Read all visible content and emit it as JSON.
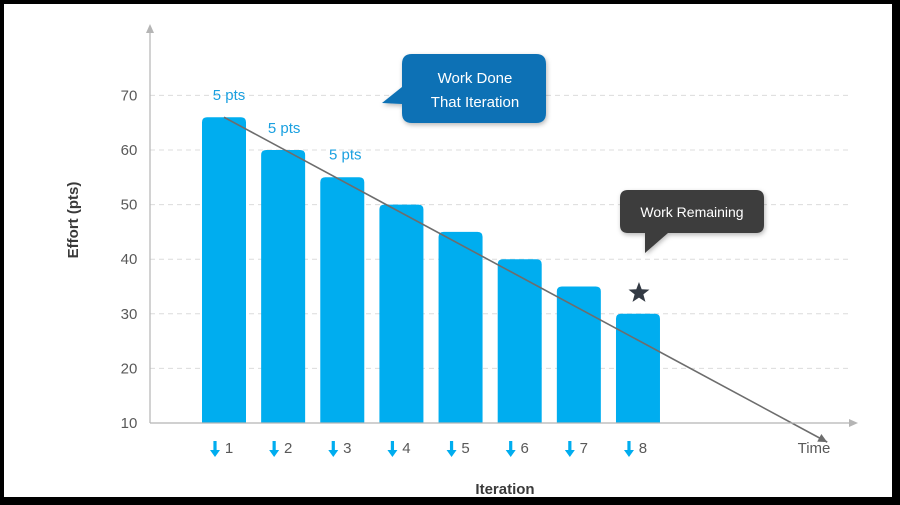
{
  "chart_data": {
    "type": "bar",
    "categories": [
      "1",
      "2",
      "3",
      "4",
      "5",
      "6",
      "7",
      "8"
    ],
    "values": [
      66,
      60,
      55,
      50,
      45,
      40,
      35,
      30
    ],
    "xlabel": "Iteration",
    "x_end_label": "Time",
    "ylabel": "Effort (pts)",
    "yticks": [
      10,
      20,
      30,
      40,
      50,
      60,
      70
    ],
    "ylim": [
      0,
      72
    ],
    "grid": "horizontal dashed",
    "bar_color": "#00adef",
    "trend_line": {
      "from": {
        "x": 1,
        "y": 66
      },
      "to": {
        "x": 11.2,
        "y": 6.5
      }
    },
    "data_labels": [
      {
        "category": "1",
        "text": "5 pts"
      },
      {
        "category": "2",
        "text": "5 pts"
      },
      {
        "category": "3",
        "text": "5 pts"
      }
    ],
    "annotations": [
      {
        "text_lines": [
          "Work Done",
          "That Iteration"
        ],
        "color": "#0b71b5"
      },
      {
        "text_lines": [
          "Work Remaining"
        ],
        "color": "#3c3c3c",
        "marker": "star",
        "marker_category": "8"
      }
    ]
  }
}
